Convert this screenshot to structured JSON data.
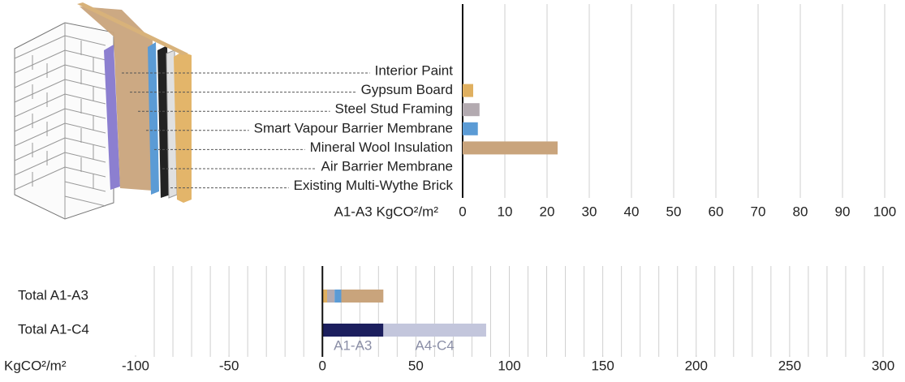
{
  "chart_data": [
    {
      "type": "hbar",
      "categories": [
        "Interior Paint",
        "Gypsum Board",
        "Steel Stud Framing",
        "Smart Vapour Barrier Membrane",
        "Mineral Wool Insulation",
        "Air Barrier Membrane",
        "Existing Multi-Wythe Brick"
      ],
      "values": [
        0,
        2.5,
        4,
        3.6,
        22.5,
        0,
        0
      ],
      "colors": [
        "#e8d6a8",
        "#e0b060",
        "#b3aab0",
        "#5b9bd5",
        "#c9a47c",
        "#8a7cc8",
        "#dddddd"
      ],
      "x_label": "A1-A3 KgCO²/m²",
      "xlim": [
        0,
        100
      ],
      "xticks": [
        0,
        10,
        20,
        30,
        40,
        50,
        60,
        70,
        80,
        90,
        100
      ],
      "grid": true
    },
    {
      "type": "stacked_hbar",
      "categories": [
        "Total A1-A3",
        "Total A1-C4"
      ],
      "series": [
        {
          "name": "A1-A3",
          "color": "#1c1f5e",
          "values": [
            null,
            32.6
          ]
        },
        {
          "name": "A4-C4",
          "color": "#c3c6dc",
          "values": [
            null,
            55
          ]
        }
      ],
      "x_label": "KgCO²/m²",
      "xlim": [
        -100,
        300
      ],
      "xticks": [
        -100,
        -50,
        0,
        50,
        100,
        150,
        200,
        250,
        300
      ],
      "grid": true,
      "minor_grid_step": 10
    }
  ]
}
